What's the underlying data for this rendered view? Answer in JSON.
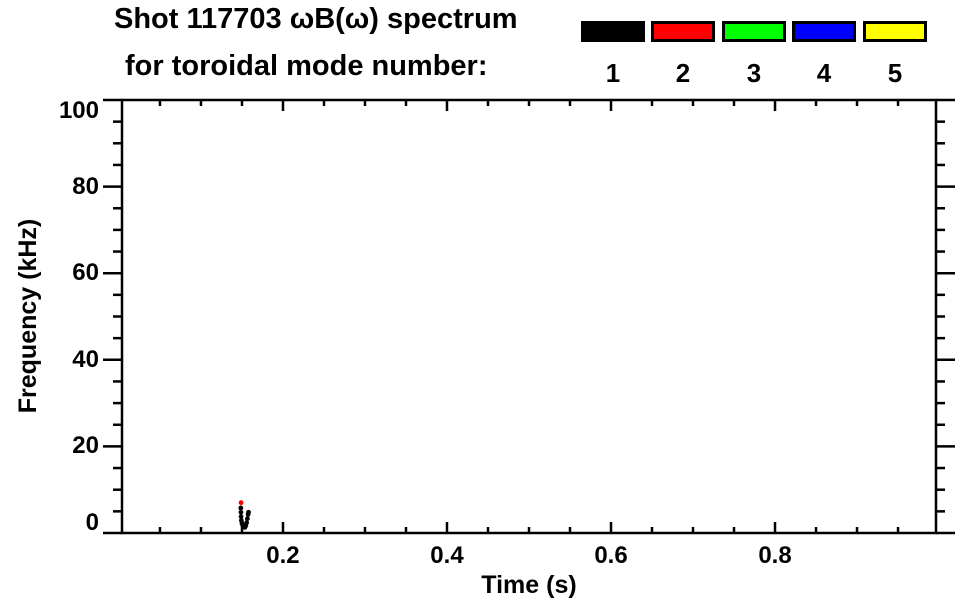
{
  "title": {
    "line1": "Shot 117703 ωB(ω) spectrum",
    "line2": "for toroidal mode number:"
  },
  "legend": {
    "entries": [
      {
        "label": "1",
        "color": "#000000"
      },
      {
        "label": "2",
        "color": "#ff0000"
      },
      {
        "label": "3",
        "color": "#00ff00"
      },
      {
        "label": "4",
        "color": "#0000ff"
      },
      {
        "label": "5",
        "color": "#ffff00"
      }
    ]
  },
  "chart_data": {
    "type": "scatter",
    "title": "Shot 117703 ωB(ω) spectrum for toroidal mode number:",
    "xlabel": "Time (s)",
    "ylabel": "Frequency (kHz)",
    "xlim": [
      0.0037,
      0.9963
    ],
    "ylim": [
      0,
      100
    ],
    "x_major_ticks": [
      0.2,
      0.4,
      0.6,
      0.8
    ],
    "x_tick_labels": [
      "0.2",
      "0.4",
      "0.6",
      "0.8"
    ],
    "x_minor_interval": 0.05,
    "y_major_ticks": [
      0,
      20,
      40,
      60,
      80,
      100
    ],
    "y_tick_labels": [
      "0",
      "20",
      "40",
      "60",
      "80",
      "100"
    ],
    "y_minor_interval": 5,
    "grid": false,
    "background": "#ffffff",
    "axis_color": "#000000",
    "legend_position": "top-right",
    "series": [
      {
        "name": "1",
        "color": "#000000",
        "points": [
          [
            0.1486,
            5.8
          ],
          [
            0.1487,
            4.8
          ],
          [
            0.1489,
            3.8
          ],
          [
            0.1493,
            2.9
          ],
          [
            0.15,
            2.2
          ],
          [
            0.151,
            1.7
          ],
          [
            0.1522,
            1.4
          ],
          [
            0.1535,
            1.3
          ],
          [
            0.1547,
            1.7
          ],
          [
            0.1557,
            2.4
          ],
          [
            0.1566,
            3.3
          ],
          [
            0.1575,
            4.3
          ],
          [
            0.158,
            4.8
          ]
        ]
      },
      {
        "name": "2",
        "color": "#ff0000",
        "points": [
          [
            0.1489,
            7.0
          ]
        ]
      },
      {
        "name": "3",
        "color": "#00ff00",
        "points": []
      },
      {
        "name": "4",
        "color": "#0000ff",
        "points": []
      },
      {
        "name": "5",
        "color": "#ffff00",
        "points": []
      }
    ]
  }
}
